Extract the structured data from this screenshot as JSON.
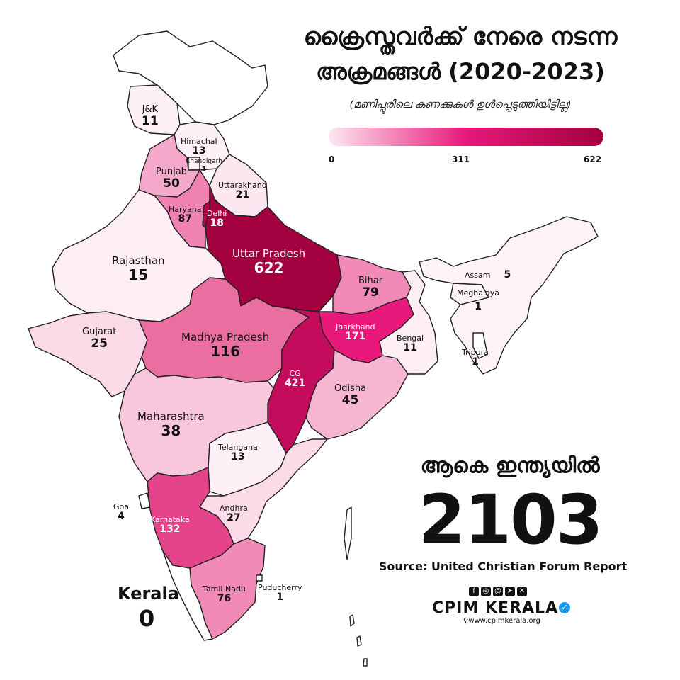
{
  "title": {
    "line1": "ക്രൈസ്തവർക്ക് നേരെ നടന്ന",
    "line2": "അക്രമങ്ങൾ (2020-2023)",
    "note": "(മണിപ്പൂരിലെ കണക്കുകൾ ഉൾപ്പെടുത്തിയിട്ടില്ല)"
  },
  "legend": {
    "min": "0",
    "mid": "311",
    "max": "622",
    "colors": [
      "#fde7f1",
      "#e8197a",
      "#a3003f"
    ]
  },
  "states": [
    {
      "name": "J&K",
      "value": "11",
      "color": "#fdf0f6"
    },
    {
      "name": "Himachal",
      "value": "13",
      "color": "#fdf0f6"
    },
    {
      "name": "Chandigarh",
      "value": "1",
      "color": "#fdf0f6"
    },
    {
      "name": "Punjab",
      "value": "50",
      "color": "#f4a9cb"
    },
    {
      "name": "Uttarakhand",
      "value": "21",
      "color": "#fce6f0"
    },
    {
      "name": "Haryana",
      "value": "87",
      "color": "#ef82b0"
    },
    {
      "name": "Delhi",
      "value": "18",
      "color": "#b2094b"
    },
    {
      "name": "Uttar Pradesh",
      "value": "622",
      "color": "#a3003f"
    },
    {
      "name": "Rajasthan",
      "value": "15",
      "color": "#fdeef4"
    },
    {
      "name": "Bihar",
      "value": "79",
      "color": "#f18ab6"
    },
    {
      "name": "Assam",
      "value": "5",
      "color": "#fdf2f7"
    },
    {
      "name": "Meghalaya",
      "value": "1",
      "color": "#fdf2f7"
    },
    {
      "name": "Gujarat",
      "value": "25",
      "color": "#fbdbe8"
    },
    {
      "name": "Madhya Pradesh",
      "value": "116",
      "color": "#ea6ea0"
    },
    {
      "name": "Jharkhand",
      "value": "171",
      "color": "#e8197a"
    },
    {
      "name": "Bengal",
      "value": "11",
      "color": "#fdeef4"
    },
    {
      "name": "Tripura",
      "value": "1",
      "color": "#ffffff"
    },
    {
      "name": "CG",
      "value": "421",
      "color": "#c40c5c"
    },
    {
      "name": "Odisha",
      "value": "45",
      "color": "#f6b6d1"
    },
    {
      "name": "Maharashtra",
      "value": "38",
      "color": "#f9c7dc"
    },
    {
      "name": "Telangana",
      "value": "13",
      "color": "#fdf0f6"
    },
    {
      "name": "Goa",
      "value": "4",
      "color": "#ffffff"
    },
    {
      "name": "Andhra",
      "value": "27",
      "color": "#fbdbe8"
    },
    {
      "name": "Karnataka",
      "value": "132",
      "color": "#e5448b"
    },
    {
      "name": "Tamil Nadu",
      "value": "76",
      "color": "#f18ab6"
    },
    {
      "name": "Puducherry",
      "value": "1",
      "color": "#ffffff"
    },
    {
      "name": "Kerala",
      "value": "0",
      "color": "#ffffff"
    }
  ],
  "total": {
    "label": "ആകെ ഇന്ത്യയിൽ",
    "value": "2103"
  },
  "source": "Source: United Christian Forum Report",
  "branding": {
    "name": "CPIM KERALA",
    "website": "www.cpimkerala.org"
  }
}
